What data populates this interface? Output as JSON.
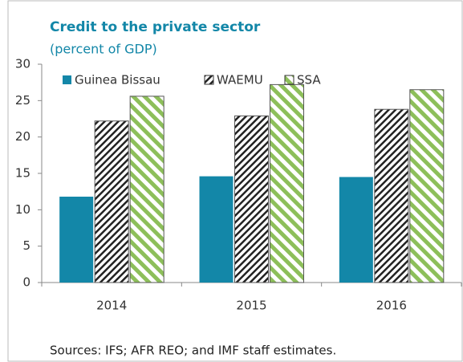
{
  "chart_data": {
    "type": "bar",
    "title": "Credit to the private sector",
    "subtitle": "(percent of GDP)",
    "categories": [
      "2014",
      "2015",
      "2016"
    ],
    "series": [
      {
        "name": "Guinea Bissau",
        "color": "#1387a8",
        "pattern": "solid",
        "values": [
          11.8,
          14.6,
          14.5
        ]
      },
      {
        "name": "WAEMU",
        "color": "#222222",
        "pattern": "hatch",
        "values": [
          22.2,
          22.9,
          23.8
        ]
      },
      {
        "name": "SSA",
        "color": "#8dbf5a",
        "pattern": "stripes",
        "values": [
          25.6,
          27.2,
          26.5
        ]
      }
    ],
    "ylim": [
      0,
      30
    ],
    "yticks": [
      0,
      5,
      10,
      15,
      20,
      25,
      30
    ],
    "legend": "upper left",
    "source": "Sources: IFS; AFR REO; and IMF staff estimates."
  }
}
